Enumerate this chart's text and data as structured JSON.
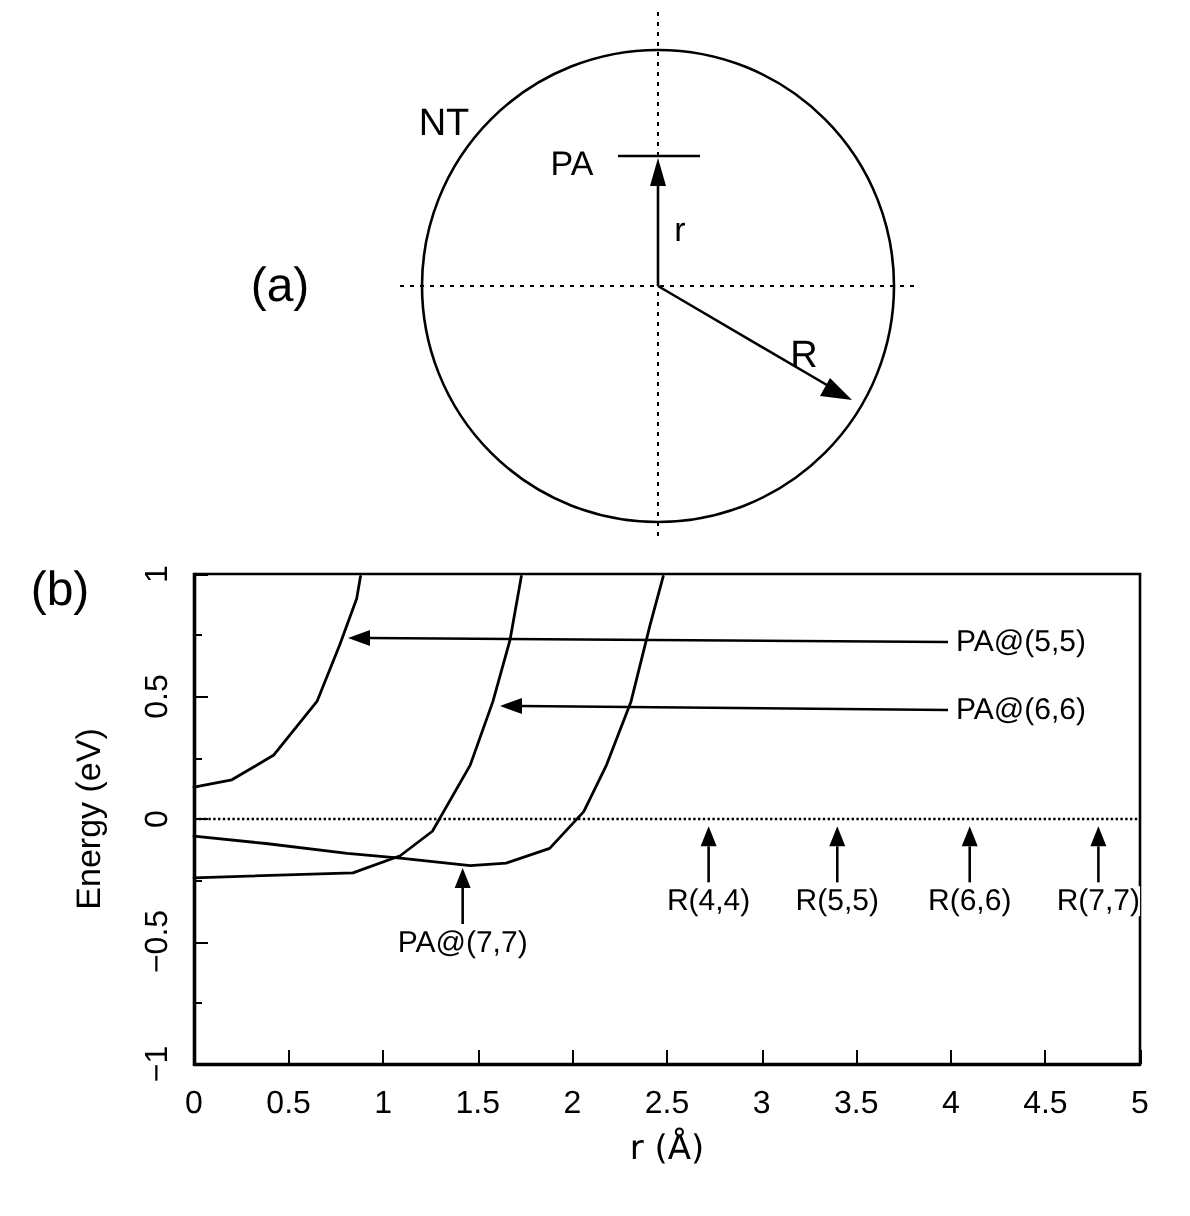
{
  "chart_data": {
    "type": "line",
    "xlabel": "r (Å)",
    "ylabel": "Energy (eV)",
    "xlim": [
      0,
      5
    ],
    "xticks": [
      0,
      0.5,
      1,
      1.5,
      2,
      2.5,
      3,
      3.5,
      4,
      4.5,
      5
    ],
    "ylim": [
      -1,
      1
    ],
    "yticks": [
      {
        "value": -1,
        "label": "−1"
      },
      {
        "value": -0.5,
        "label": "−0.5"
      },
      0,
      0.5,
      1
    ],
    "grid": false,
    "marker": "none",
    "line_style": "solid",
    "series": [
      {
        "color": "#000000",
        "x": [
          0,
          0.2,
          0.42,
          0.65,
          0.77,
          0.86,
          0.88
        ],
        "values": [
          0.13,
          0.16,
          0.26,
          0.48,
          0.71,
          0.9,
          0.99
        ]
      },
      {
        "color": "#000000",
        "x": [
          0,
          0.84,
          1.09,
          1.26,
          1.46,
          1.58,
          1.67,
          1.73
        ],
        "values": [
          -0.24,
          -0.22,
          -0.15,
          -0.05,
          0.22,
          0.48,
          0.73,
          0.99
        ]
      },
      {
        "color": "#000000",
        "x": [
          0,
          0.38,
          0.81,
          1.09,
          1.46,
          1.65,
          1.88,
          2.06,
          2.18,
          2.31,
          2.41,
          2.48
        ],
        "values": [
          -0.07,
          -0.1,
          -0.14,
          -0.16,
          -0.19,
          -0.18,
          -0.12,
          0.03,
          0.22,
          0.48,
          0.79,
          0.99
        ]
      }
    ],
    "ref_lines": [
      {
        "axis": "y",
        "value": 0,
        "line_style": "dotted",
        "color": "#000000"
      }
    ],
    "annotations": [
      "(a)",
      "NT",
      "PA",
      "r",
      "R",
      "(b)",
      "PA@(5,5)",
      "PA@(6,6)",
      {
        "text": "PA@(7,7)",
        "x": 1.42,
        "y": -0.2
      },
      {
        "text": "R(4,4)",
        "x": 2.72,
        "y": -0.03
      },
      {
        "text": "R(5,5)",
        "x": 3.4,
        "y": -0.03
      },
      {
        "text": "R(6,6)",
        "x": 4.1,
        "y": -0.03
      },
      {
        "text": "R(7,7)",
        "x": 4.78,
        "y": -0.03
      }
    ]
  }
}
